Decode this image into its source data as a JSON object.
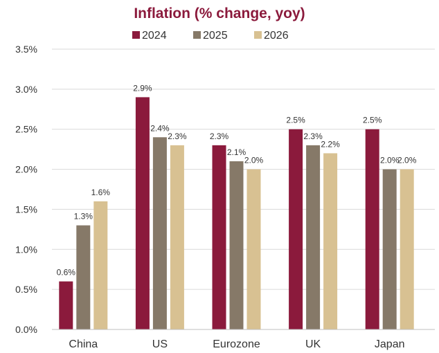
{
  "chart_data": {
    "type": "bar",
    "title": "Inflation (% change, yoy)",
    "categories": [
      "China",
      "US",
      "Eurozone",
      "UK",
      "Japan"
    ],
    "series": [
      {
        "name": "2024",
        "color": "#8B1A3C",
        "values": [
          0.6,
          2.9,
          2.3,
          2.5,
          2.5
        ],
        "labels": [
          "0.6%",
          "2.9%",
          "2.3%",
          "2.5%",
          "2.5%"
        ]
      },
      {
        "name": "2025",
        "color": "#867968",
        "values": [
          1.3,
          2.4,
          2.1,
          2.3,
          2.0
        ],
        "labels": [
          "1.3%",
          "2.4%",
          "2.1%",
          "2.3%",
          "2.0%"
        ]
      },
      {
        "name": "2026",
        "color": "#D8C192",
        "values": [
          1.6,
          2.3,
          2.0,
          2.2,
          2.0
        ],
        "labels": [
          "1.6%",
          "2.3%",
          "2.0%",
          "2.2%",
          "2.0%"
        ]
      }
    ],
    "ylim": [
      0,
      3.5
    ],
    "yticks": [
      0,
      0.5,
      1.0,
      1.5,
      2.0,
      2.5,
      3.0,
      3.5
    ],
    "ytick_labels": [
      "0.0%",
      "0.5%",
      "1.0%",
      "1.5%",
      "2.0%",
      "2.5%",
      "3.0%",
      "3.5%"
    ],
    "xlabel": "",
    "ylabel": "",
    "grid": true,
    "legend_position": "top-center",
    "colors": {
      "title": "#8B1A3C",
      "text": "#333333",
      "gridline": "#D9D9D9",
      "axis": "#BFBFBF"
    }
  }
}
